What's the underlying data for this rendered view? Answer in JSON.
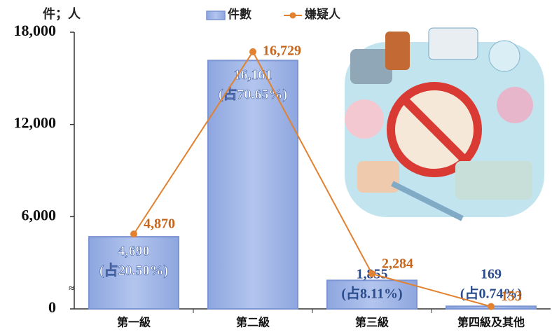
{
  "chart_data": {
    "type": "bar-line",
    "y_axis_label": "件；人",
    "axis_break_label": "≈",
    "categories": [
      "第一級",
      "第二級",
      "第三級",
      "第四級及其他"
    ],
    "ylim": [
      0,
      18000
    ],
    "yticks": [
      0,
      {
        "value": 6000,
        "label": "6,000"
      },
      {
        "value": 12000,
        "label": "12,000"
      },
      {
        "value": 18000,
        "label": "18,000"
      }
    ],
    "series": [
      {
        "name": "件數",
        "type": "bar",
        "color": "#a4b9e8",
        "values": [
          4690,
          16161,
          1855,
          169
        ],
        "value_labels": [
          "4,690",
          "16,161",
          "1,855",
          "169"
        ],
        "share_labels": [
          "(占20.50%)",
          "(占70.65%)",
          "(占8.11%)",
          "(占0.74%)"
        ]
      },
      {
        "name": "嫌疑人",
        "type": "line",
        "color": "#e2812f",
        "values": [
          4870,
          16729,
          2284,
          153
        ],
        "value_labels": [
          "4,870",
          "16,729",
          "2,284",
          "153"
        ]
      }
    ]
  }
}
